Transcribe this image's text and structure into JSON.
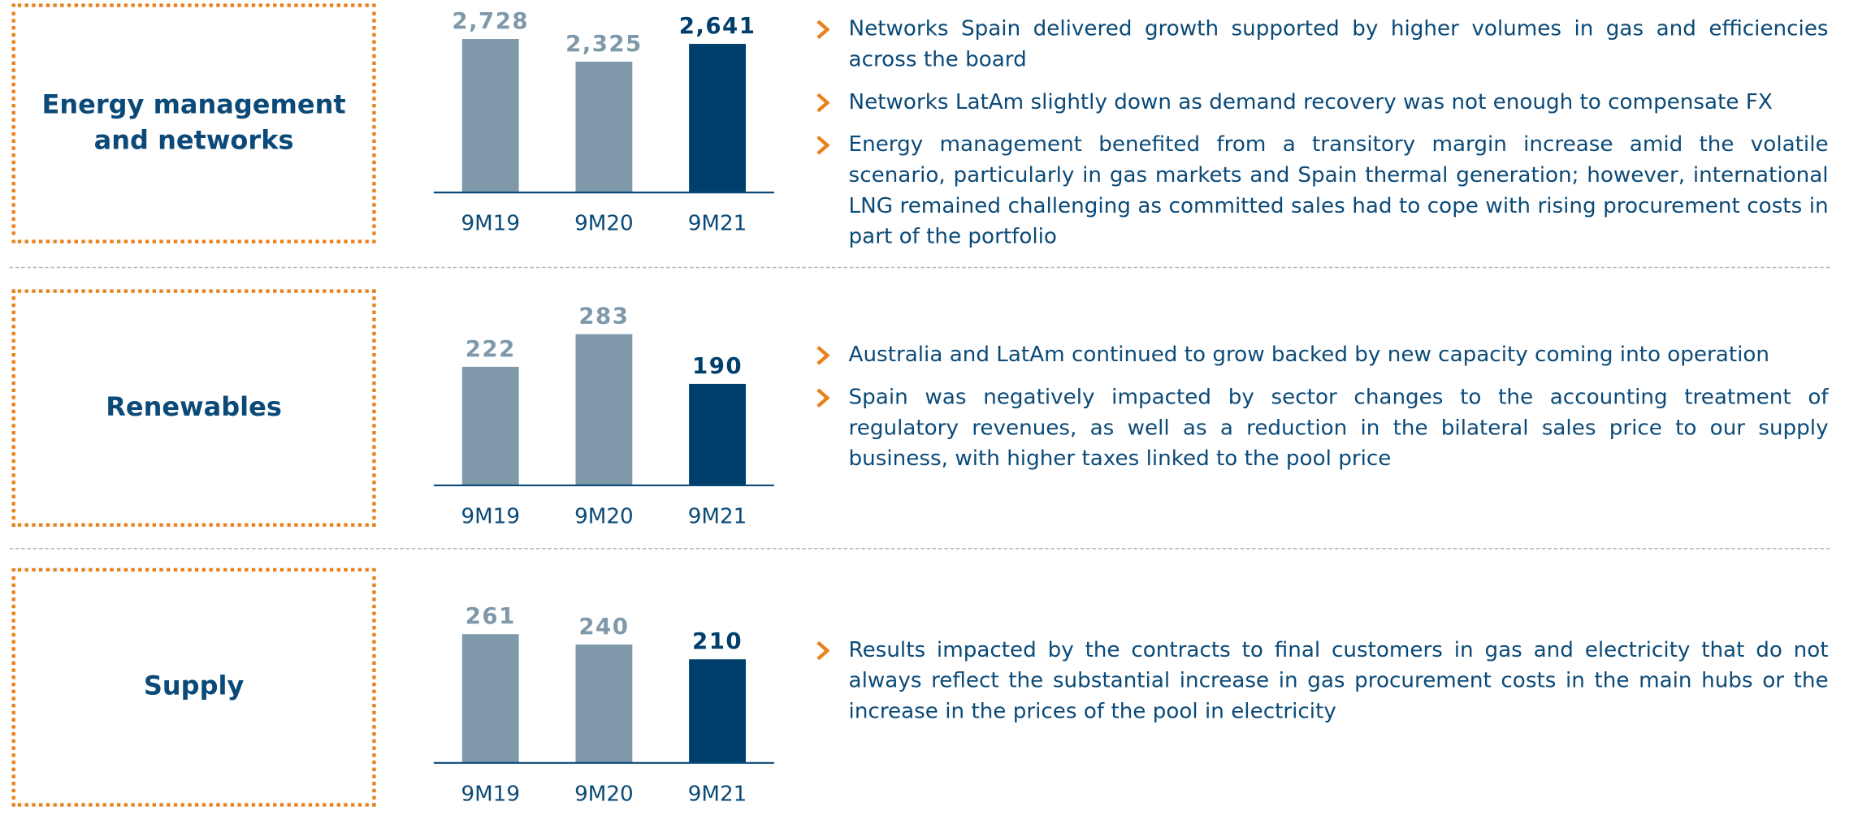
{
  "chart_data": [
    {
      "type": "bar",
      "title": "Energy management and networks",
      "categories": [
        "9M19",
        "9M20",
        "9M21"
      ],
      "values": [
        2728,
        2325,
        2641
      ],
      "value_labels": [
        "2,728",
        "2,325",
        "2,641"
      ],
      "colors": [
        "#7f99aa",
        "#7f99aa",
        "#003f6b"
      ],
      "bullets": [
        "Networks Spain delivered growth supported by higher volumes in gas and efficiencies across the board",
        "Networks LatAm slightly down as demand recovery was not enough to compensate FX",
        "Energy management benefited from a transitory margin increase amid the volatile scenario, particularly in gas markets and Spain thermal generation; however, international LNG remained challenging as committed sales had to cope with rising procurement costs in part of the portfolio"
      ]
    },
    {
      "type": "bar",
      "title": "Renewables",
      "categories": [
        "9M19",
        "9M20",
        "9M21"
      ],
      "values": [
        222,
        283,
        190
      ],
      "colors": [
        "#7f99aa",
        "#7f99aa",
        "#003f6b"
      ],
      "bullets": [
        "Australia and LatAm continued to grow backed by new capacity coming into operation",
        "Spain was negatively impacted by sector changes to the accounting treatment of regulatory revenues, as well as a reduction in the bilateral sales price to our supply business, with higher taxes linked to the pool price"
      ]
    },
    {
      "type": "bar",
      "title": "Supply",
      "categories": [
        "9M19",
        "9M20",
        "9M21"
      ],
      "values": [
        261,
        240,
        210
      ],
      "colors": [
        "#7f99aa",
        "#7f99aa",
        "#003f6b"
      ],
      "bullets": [
        "Results impacted by the contracts to final customers in gas and electricity that do not always reflect the substantial increase in gas procurement costs in the main hubs or the increase in the prices of the pool in electricity"
      ]
    }
  ]
}
